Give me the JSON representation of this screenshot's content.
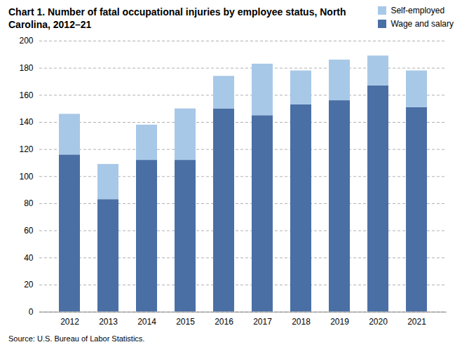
{
  "chart_data": {
    "type": "bar",
    "stacked": true,
    "title": "Chart 1. Number of fatal occupational injuries by employee status, North Carolina, 2012–21",
    "source": "Source: U.S. Bureau of Labor Statistics.",
    "categories": [
      "2012",
      "2013",
      "2014",
      "2015",
      "2016",
      "2017",
      "2018",
      "2019",
      "2020",
      "2021"
    ],
    "series": [
      {
        "name": "Wage and salary",
        "color": "#4a6fa5",
        "values": [
          116,
          83,
          112,
          112,
          150,
          145,
          153,
          156,
          167,
          151
        ]
      },
      {
        "name": "Self-employed",
        "color": "#a8c8e8",
        "values": [
          30,
          26,
          26,
          38,
          24,
          38,
          25,
          30,
          22,
          27
        ]
      }
    ],
    "ylim": [
      0,
      200
    ],
    "yticks": [
      0,
      20,
      40,
      60,
      80,
      100,
      120,
      140,
      160,
      180,
      200
    ],
    "grid": true,
    "legend": "upper right"
  }
}
